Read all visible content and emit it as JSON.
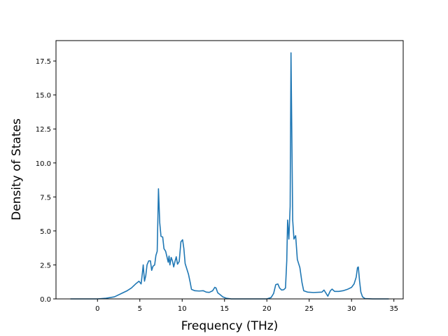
{
  "chart_data": {
    "type": "line",
    "title": "",
    "xlabel": "Frequency (THz)",
    "ylabel": "Density of States",
    "xlim": [
      -4.9,
      36.1
    ],
    "ylim": [
      0,
      19
    ],
    "xticks": [
      0,
      5,
      10,
      15,
      20,
      25,
      30,
      35
    ],
    "yticks": [
      0.0,
      2.5,
      5.0,
      7.5,
      10.0,
      12.5,
      15.0,
      17.5
    ],
    "grid": false,
    "legend": false,
    "series": [
      {
        "color": "#1f77b4",
        "points": [
          [
            -3.2,
            0.0
          ],
          [
            0.0,
            0.0
          ],
          [
            1.0,
            0.05
          ],
          [
            2.0,
            0.15
          ],
          [
            3.0,
            0.45
          ],
          [
            3.5,
            0.6
          ],
          [
            4.0,
            0.8
          ],
          [
            4.5,
            1.1
          ],
          [
            4.9,
            1.3
          ],
          [
            5.15,
            1.1
          ],
          [
            5.3,
            1.9
          ],
          [
            5.4,
            2.5
          ],
          [
            5.55,
            1.3
          ],
          [
            5.7,
            1.7
          ],
          [
            5.85,
            2.5
          ],
          [
            6.05,
            2.8
          ],
          [
            6.25,
            2.8
          ],
          [
            6.4,
            2.1
          ],
          [
            6.55,
            2.4
          ],
          [
            6.75,
            2.5
          ],
          [
            6.9,
            3.2
          ],
          [
            7.05,
            3.5
          ],
          [
            7.15,
            6.5
          ],
          [
            7.2,
            8.1
          ],
          [
            7.35,
            5.6
          ],
          [
            7.5,
            4.6
          ],
          [
            7.7,
            4.55
          ],
          [
            7.85,
            3.7
          ],
          [
            8.05,
            3.5
          ],
          [
            8.2,
            3.1
          ],
          [
            8.35,
            2.7
          ],
          [
            8.45,
            3.15
          ],
          [
            8.55,
            2.5
          ],
          [
            8.7,
            3.05
          ],
          [
            8.85,
            2.8
          ],
          [
            9.0,
            2.35
          ],
          [
            9.15,
            2.75
          ],
          [
            9.3,
            3.1
          ],
          [
            9.45,
            2.55
          ],
          [
            9.65,
            2.75
          ],
          [
            9.85,
            4.2
          ],
          [
            10.05,
            4.35
          ],
          [
            10.2,
            3.7
          ],
          [
            10.35,
            2.6
          ],
          [
            10.55,
            2.2
          ],
          [
            10.75,
            1.8
          ],
          [
            10.95,
            1.2
          ],
          [
            11.1,
            0.7
          ],
          [
            11.5,
            0.6
          ],
          [
            12.0,
            0.58
          ],
          [
            12.5,
            0.6
          ],
          [
            12.85,
            0.5
          ],
          [
            13.2,
            0.48
          ],
          [
            13.6,
            0.6
          ],
          [
            13.85,
            0.85
          ],
          [
            14.0,
            0.8
          ],
          [
            14.2,
            0.45
          ],
          [
            14.5,
            0.3
          ],
          [
            14.8,
            0.15
          ],
          [
            15.2,
            0.05
          ],
          [
            15.8,
            0.0
          ],
          [
            20.0,
            0.0
          ],
          [
            20.5,
            0.1
          ],
          [
            20.8,
            0.4
          ],
          [
            21.05,
            1.05
          ],
          [
            21.3,
            1.1
          ],
          [
            21.5,
            0.8
          ],
          [
            21.75,
            0.65
          ],
          [
            22.0,
            0.68
          ],
          [
            22.2,
            0.8
          ],
          [
            22.35,
            2.8
          ],
          [
            22.45,
            5.8
          ],
          [
            22.6,
            4.4
          ],
          [
            22.75,
            6.8
          ],
          [
            22.85,
            18.1
          ],
          [
            23.05,
            5.8
          ],
          [
            23.2,
            4.4
          ],
          [
            23.4,
            4.65
          ],
          [
            23.6,
            2.9
          ],
          [
            23.9,
            2.3
          ],
          [
            24.15,
            1.2
          ],
          [
            24.35,
            0.6
          ],
          [
            24.8,
            0.5
          ],
          [
            25.5,
            0.47
          ],
          [
            26.5,
            0.5
          ],
          [
            26.75,
            0.65
          ],
          [
            27.0,
            0.4
          ],
          [
            27.2,
            0.2
          ],
          [
            27.5,
            0.6
          ],
          [
            27.7,
            0.72
          ],
          [
            28.0,
            0.55
          ],
          [
            28.5,
            0.55
          ],
          [
            29.0,
            0.6
          ],
          [
            29.5,
            0.7
          ],
          [
            30.0,
            0.85
          ],
          [
            30.3,
            1.1
          ],
          [
            30.55,
            1.6
          ],
          [
            30.7,
            2.3
          ],
          [
            30.8,
            2.35
          ],
          [
            30.95,
            1.3
          ],
          [
            31.1,
            0.5
          ],
          [
            31.3,
            0.15
          ],
          [
            31.6,
            0.02
          ],
          [
            32.5,
            0.0
          ],
          [
            34.4,
            0.0
          ]
        ]
      }
    ]
  }
}
